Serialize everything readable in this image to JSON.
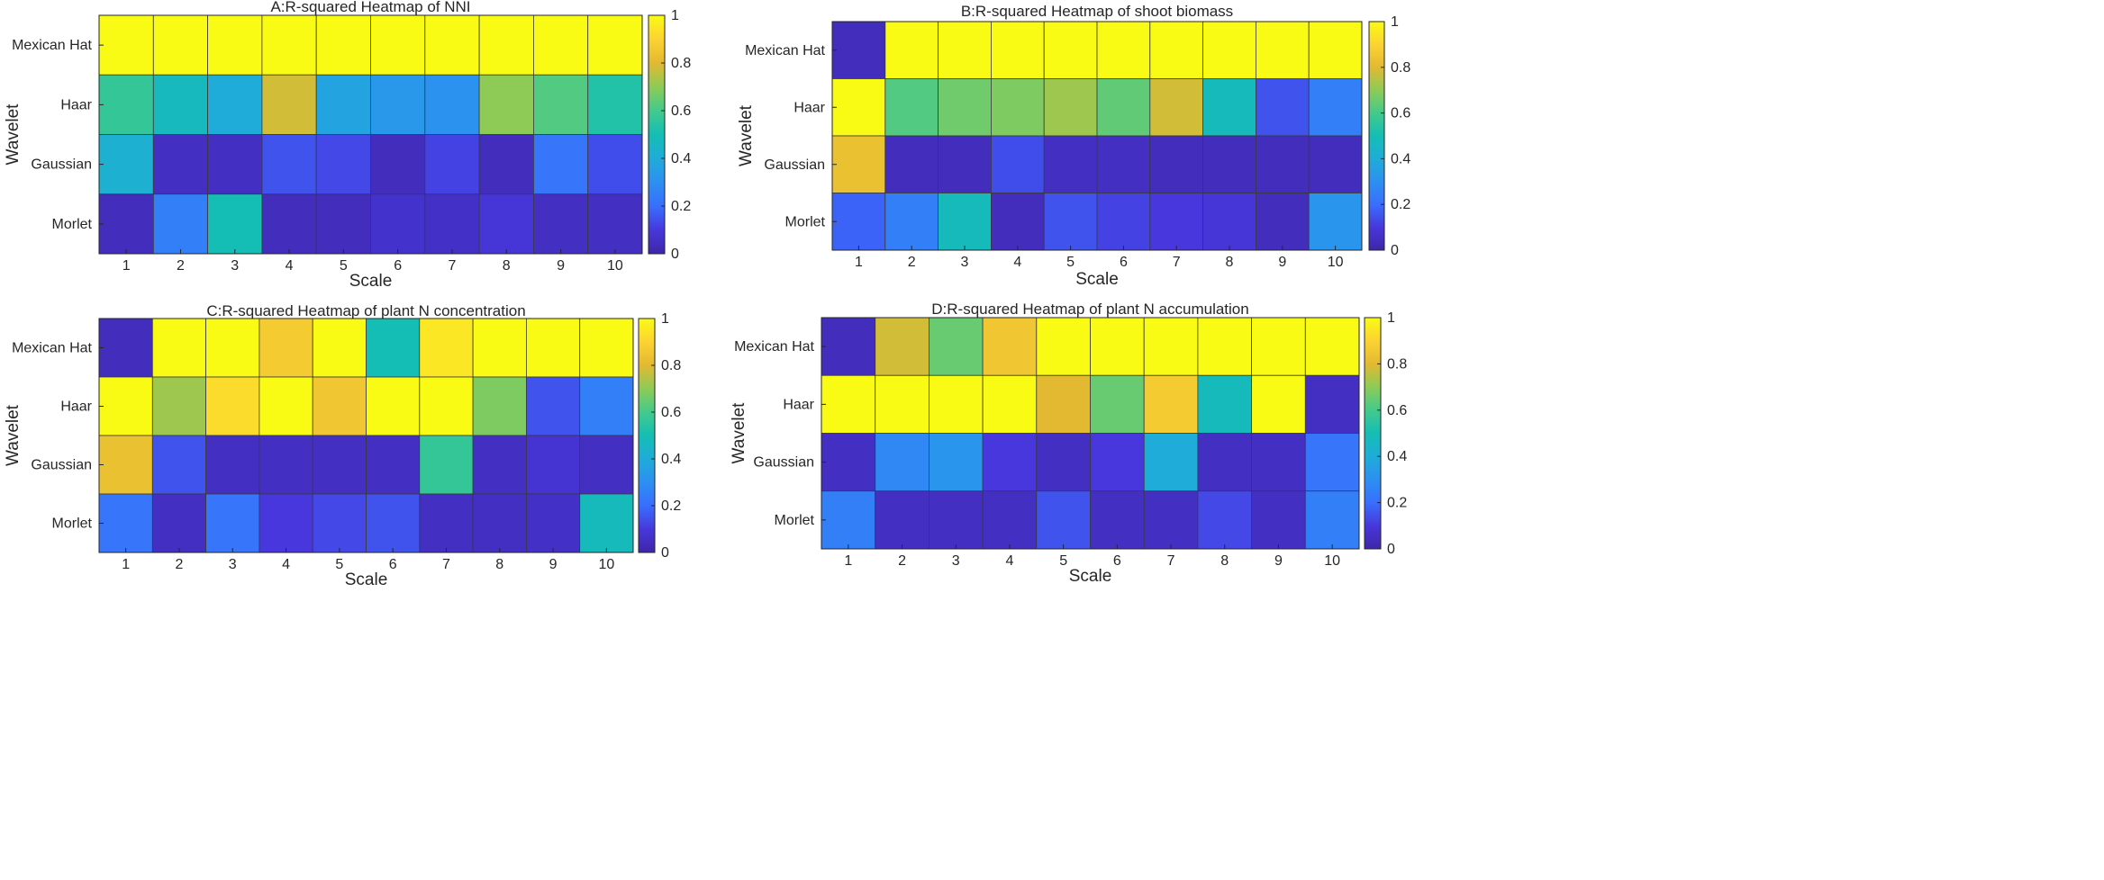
{
  "chart_data": [
    {
      "type": "heatmap",
      "title": "A:R-squared Heatmap of NNI",
      "xlabel": "Scale",
      "ylabel": "Wavelet",
      "x": [
        "1",
        "2",
        "3",
        "4",
        "5",
        "6",
        "7",
        "8",
        "9",
        "10"
      ],
      "y": [
        "Mexican Hat",
        "Haar",
        "Gaussian",
        "Morlet"
      ],
      "values": [
        [
          1.0,
          1.0,
          1.0,
          1.0,
          1.0,
          1.0,
          1.0,
          1.0,
          1.0,
          1.0
        ],
        [
          0.57,
          0.47,
          0.4,
          0.78,
          0.37,
          0.33,
          0.31,
          0.7,
          0.62,
          0.53
        ],
        [
          0.42,
          0.05,
          0.05,
          0.15,
          0.13,
          0.04,
          0.12,
          0.04,
          0.22,
          0.14
        ],
        [
          0.04,
          0.25,
          0.5,
          0.04,
          0.04,
          0.07,
          0.06,
          0.09,
          0.05,
          0.05
        ]
      ],
      "colorbar": {
        "range": [
          0,
          1
        ],
        "ticks": [
          "0",
          "0.2",
          "0.4",
          "0.6",
          "0.8",
          "1"
        ]
      }
    },
    {
      "type": "heatmap",
      "title": "B:R-squared Heatmap of shoot biomass",
      "xlabel": "Scale",
      "ylabel": "Wavelet",
      "x": [
        "1",
        "2",
        "3",
        "4",
        "5",
        "6",
        "7",
        "8",
        "9",
        "10"
      ],
      "y": [
        "Mexican Hat",
        "Haar",
        "Gaussian",
        "Morlet"
      ],
      "values": [
        [
          0.04,
          1.0,
          1.0,
          1.0,
          1.0,
          1.0,
          1.0,
          1.0,
          1.0,
          1.0
        ],
        [
          1.0,
          0.62,
          0.66,
          0.68,
          0.72,
          0.64,
          0.78,
          0.48,
          0.15,
          0.25
        ],
        [
          0.83,
          0.04,
          0.04,
          0.14,
          0.05,
          0.05,
          0.04,
          0.04,
          0.04,
          0.04
        ],
        [
          0.18,
          0.25,
          0.48,
          0.04,
          0.15,
          0.12,
          0.1,
          0.09,
          0.04,
          0.32
        ]
      ],
      "colorbar": {
        "range": [
          0,
          1
        ],
        "ticks": [
          "0",
          "0.2",
          "0.4",
          "0.6",
          "0.8",
          "1"
        ]
      }
    },
    {
      "type": "heatmap",
      "title": "C:R-squared Heatmap of plant N concentration",
      "xlabel": "Scale",
      "ylabel": "Wavelet",
      "x": [
        "1",
        "2",
        "3",
        "4",
        "5",
        "6",
        "7",
        "8",
        "9",
        "10"
      ],
      "y": [
        "Mexican Hat",
        "Haar",
        "Gaussian",
        "Morlet"
      ],
      "values": [
        [
          0.04,
          1.0,
          1.0,
          0.87,
          1.0,
          0.5,
          0.95,
          1.0,
          1.0,
          1.0
        ],
        [
          1.0,
          0.72,
          0.92,
          1.0,
          0.85,
          1.0,
          1.0,
          0.68,
          0.15,
          0.25
        ],
        [
          0.83,
          0.15,
          0.05,
          0.05,
          0.05,
          0.05,
          0.57,
          0.05,
          0.08,
          0.05
        ],
        [
          0.22,
          0.05,
          0.22,
          0.1,
          0.13,
          0.15,
          0.05,
          0.05,
          0.06,
          0.48
        ]
      ],
      "colorbar": {
        "range": [
          0,
          1
        ],
        "ticks": [
          "0",
          "0.2",
          "0.4",
          "0.6",
          "0.8",
          "1"
        ]
      }
    },
    {
      "type": "heatmap",
      "title": "D:R-squared Heatmap of plant N accumulation",
      "xlabel": "Scale",
      "ylabel": "Wavelet",
      "x": [
        "1",
        "2",
        "3",
        "4",
        "5",
        "6",
        "7",
        "8",
        "9",
        "10"
      ],
      "y": [
        "Mexican Hat",
        "Haar",
        "Gaussian",
        "Morlet"
      ],
      "values": [
        [
          0.04,
          0.78,
          0.65,
          0.85,
          1.0,
          1.0,
          1.0,
          1.0,
          1.0,
          1.0
        ],
        [
          1.0,
          1.0,
          1.0,
          1.0,
          0.8,
          0.65,
          0.87,
          0.48,
          1.0,
          0.05
        ],
        [
          0.05,
          0.28,
          0.32,
          0.1,
          0.05,
          0.1,
          0.4,
          0.05,
          0.05,
          0.22
        ],
        [
          0.25,
          0.05,
          0.05,
          0.05,
          0.15,
          0.05,
          0.05,
          0.13,
          0.05,
          0.25
        ]
      ],
      "colorbar": {
        "range": [
          0,
          1
        ],
        "ticks": [
          "0",
          "0.2",
          "0.4",
          "0.6",
          "0.8",
          "1"
        ]
      }
    }
  ]
}
